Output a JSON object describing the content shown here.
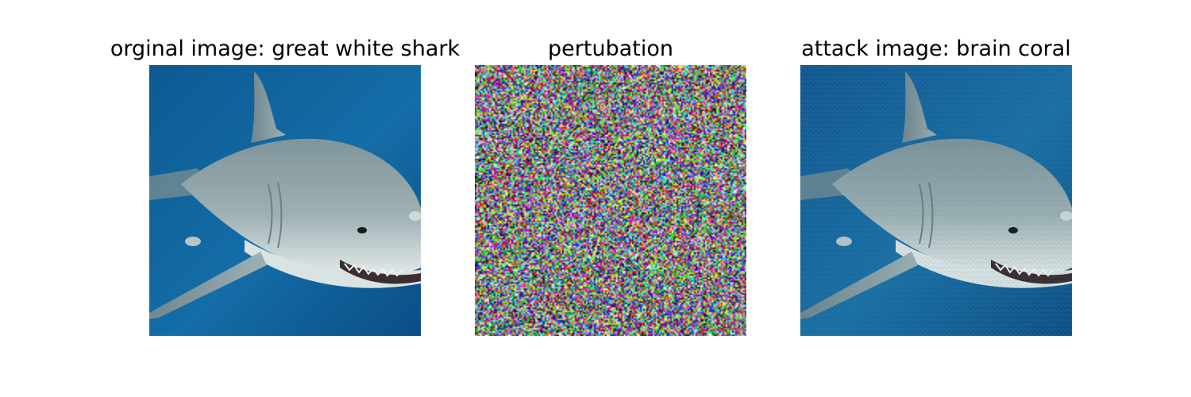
{
  "panels": [
    {
      "title": "orginal image: great white shark"
    },
    {
      "title": "pertubation"
    },
    {
      "title": "attack image: brain coral"
    }
  ],
  "colors": {
    "background": "#ffffff",
    "ocean_deep": "#0a4f8c",
    "ocean_light": "#1c78b0",
    "shark_grey": "#8c9ea4",
    "shark_belly": "#dfe7e6"
  }
}
